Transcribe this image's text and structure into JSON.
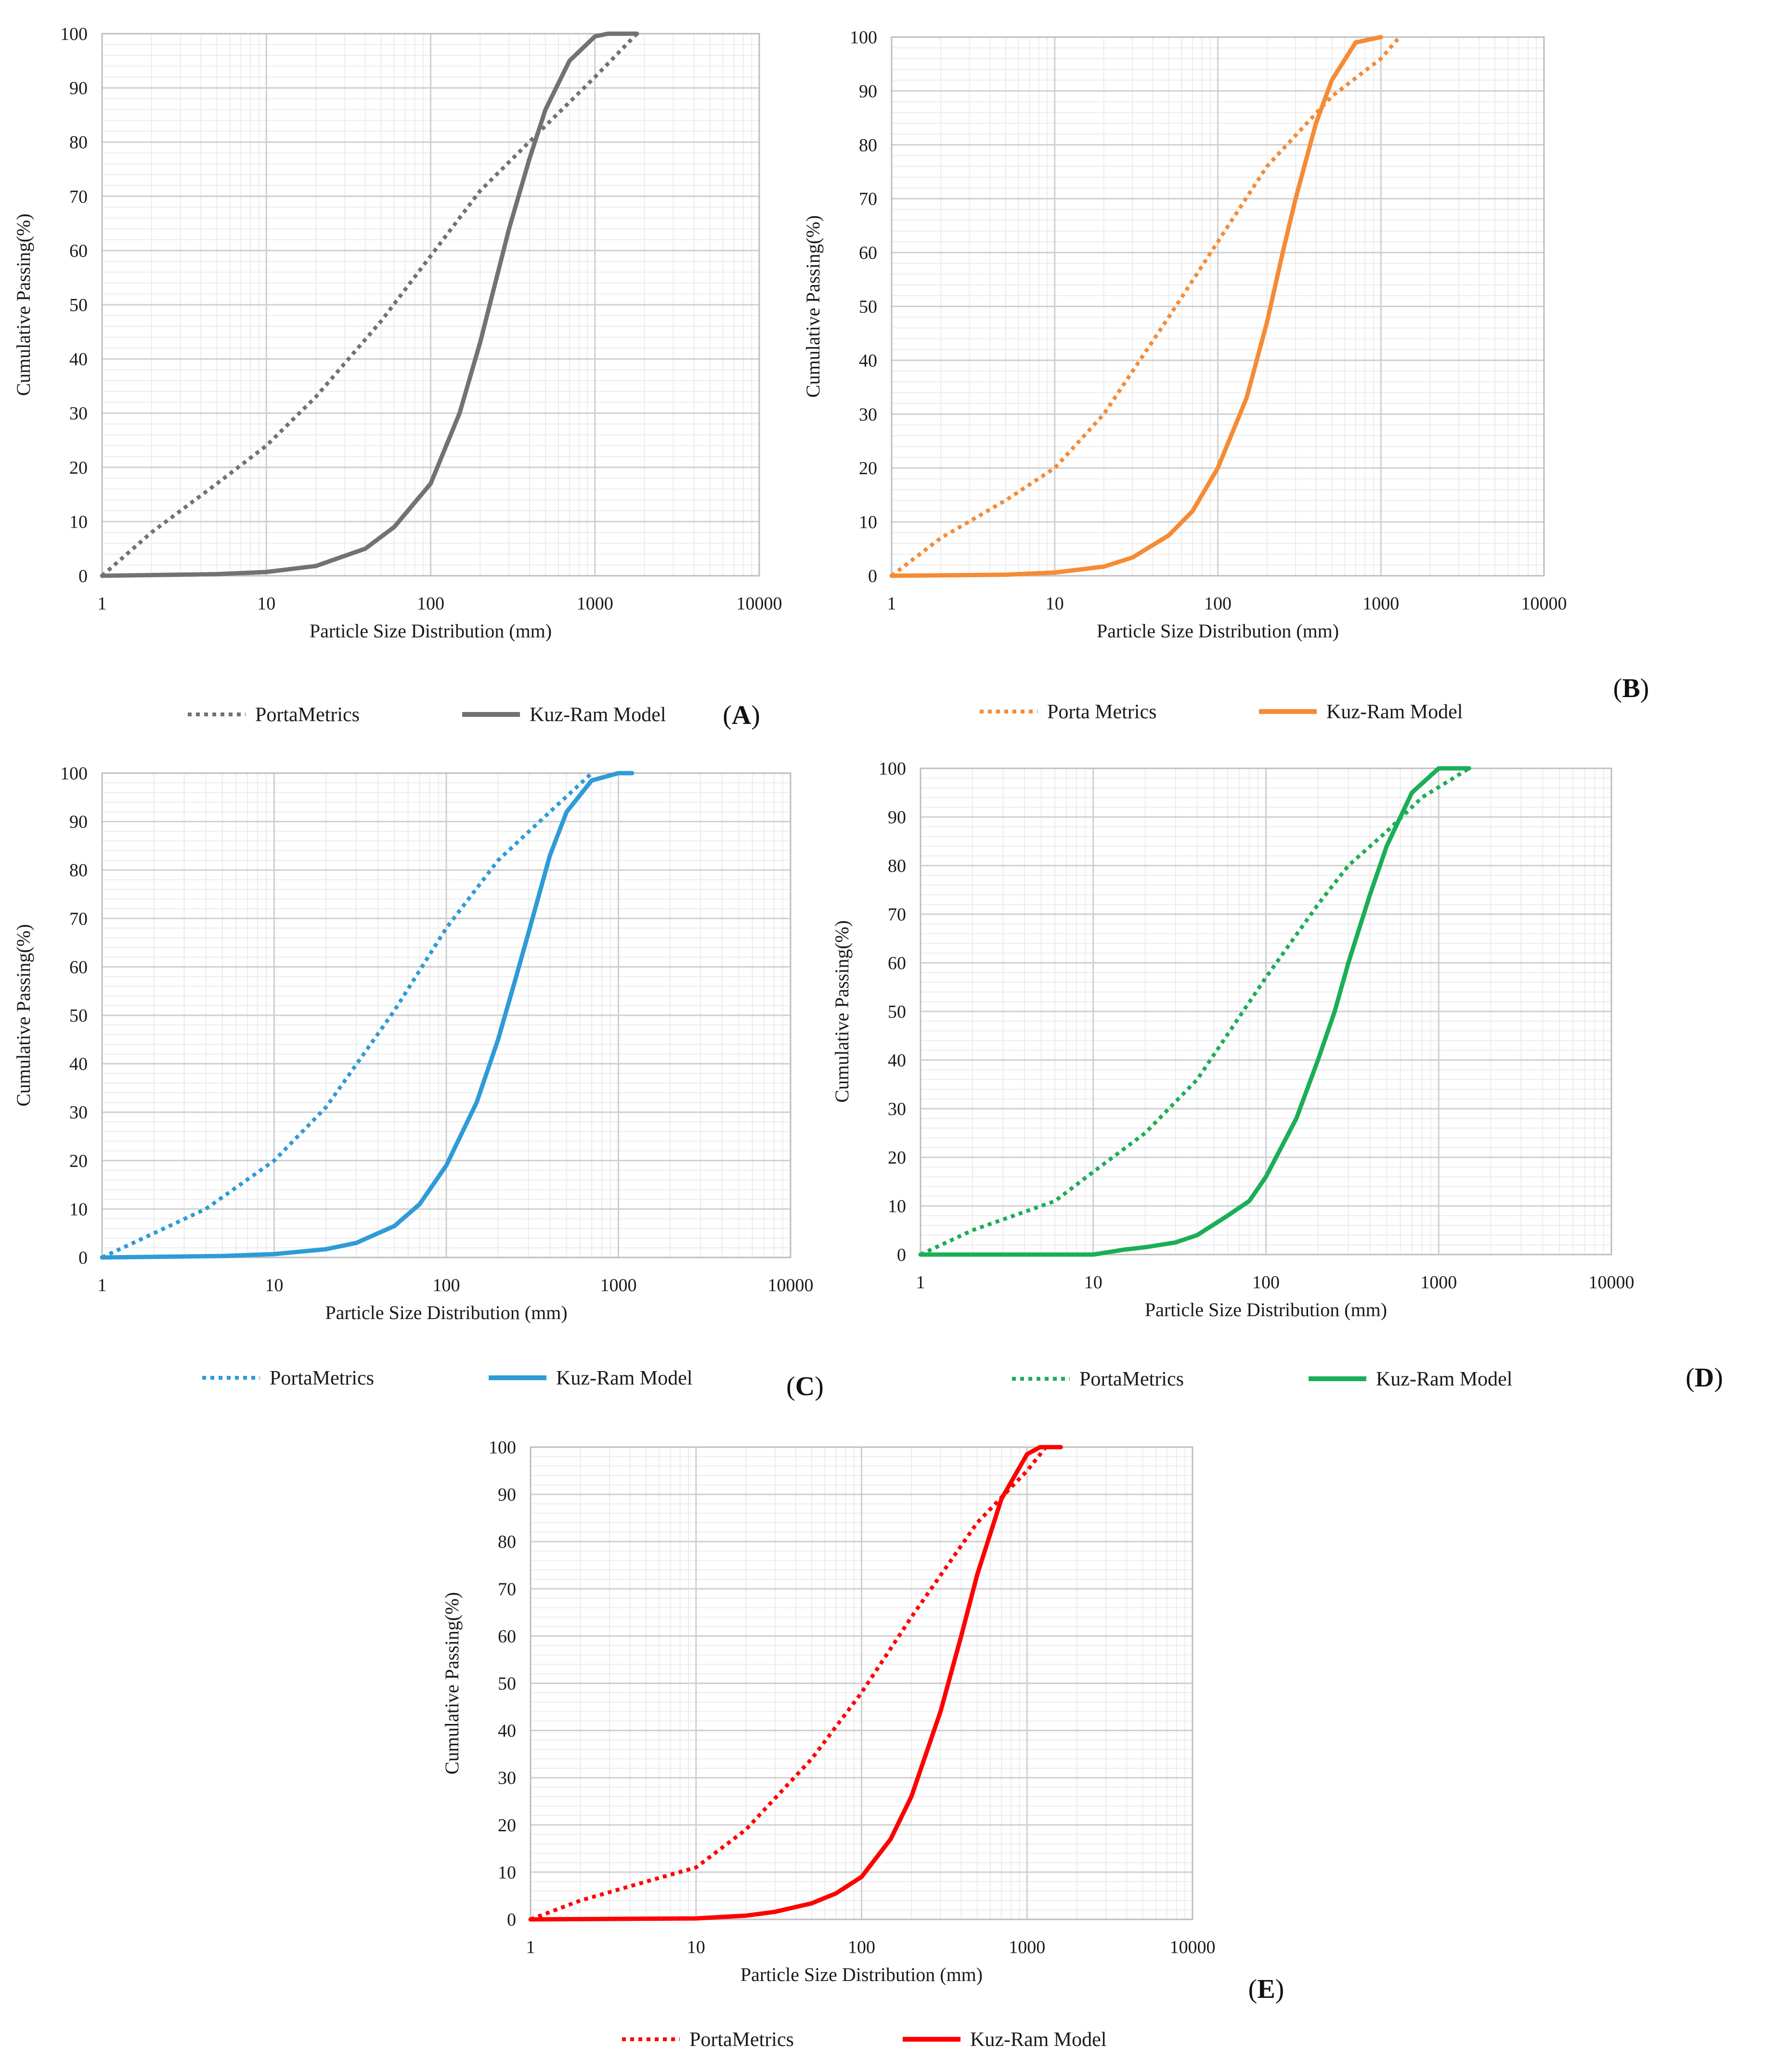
{
  "figure_title": "",
  "chart_data": [
    {
      "panel_label": "(A)",
      "panel_letter_open": "(",
      "panel_letter": "A",
      "panel_letter_close": ")",
      "type": "line",
      "x_scale": "log",
      "xlabel": "Particle Size Distribution (mm)",
      "ylabel": "Cumulative Passing(%)",
      "xlim": [
        1,
        10000
      ],
      "ylim": [
        0,
        100
      ],
      "x_ticks": [
        1,
        10,
        100,
        1000,
        10000
      ],
      "x_tick_labels": [
        "1",
        "10",
        "100",
        "1000",
        "10000"
      ],
      "y_ticks": [
        0,
        10,
        20,
        30,
        40,
        50,
        60,
        70,
        80,
        90,
        100
      ],
      "y_tick_labels": [
        "0",
        "10",
        "20",
        "30",
        "40",
        "50",
        "60",
        "70",
        "80",
        "90",
        "100"
      ],
      "grid": true,
      "legend_position": "bottom",
      "color": "#757171",
      "series": [
        {
          "name": "PortaMetrics",
          "style": "dotted",
          "x": [
            1,
            2,
            5,
            10,
            20,
            50,
            100,
            200,
            500,
            1000,
            1800
          ],
          "y": [
            0,
            8,
            17,
            24,
            33,
            47,
            59,
            71,
            83,
            92,
            100
          ]
        },
        {
          "name": "Kuz-Ram Model",
          "style": "solid",
          "x": [
            1,
            5,
            10,
            20,
            40,
            60,
            100,
            150,
            200,
            300,
            400,
            500,
            700,
            1000,
            1200,
            1800
          ],
          "y": [
            0,
            0.3,
            0.7,
            1.8,
            5,
            9,
            17,
            30,
            43,
            64,
            77,
            86,
            95,
            99.5,
            100,
            100
          ]
        }
      ]
    },
    {
      "panel_label": "(B)",
      "panel_letter_open": "(",
      "panel_letter": "B",
      "panel_letter_close": ")",
      "type": "line",
      "x_scale": "log",
      "xlabel": "Particle Size Distribution (mm)",
      "ylabel": "Cumulative Passing(%)",
      "xlim": [
        1,
        10000
      ],
      "ylim": [
        0,
        100
      ],
      "x_ticks": [
        1,
        10,
        100,
        1000,
        10000
      ],
      "x_tick_labels": [
        "1",
        "10",
        "100",
        "1000",
        "10000"
      ],
      "y_ticks": [
        0,
        10,
        20,
        30,
        40,
        50,
        60,
        70,
        80,
        90,
        100
      ],
      "y_tick_labels": [
        "0",
        "10",
        "20",
        "30",
        "40",
        "50",
        "60",
        "70",
        "80",
        "90",
        "100"
      ],
      "grid": true,
      "legend_position": "bottom",
      "color": "#F58B35",
      "series": [
        {
          "name": "Porta Metrics",
          "style": "dotted",
          "x": [
            1,
            2,
            5,
            10,
            20,
            50,
            100,
            200,
            500,
            1000,
            1300
          ],
          "y": [
            0,
            7,
            14,
            20,
            30,
            48,
            62,
            76,
            89,
            96,
            100
          ]
        },
        {
          "name": "Kuz-Ram Model",
          "style": "solid",
          "x": [
            1,
            5,
            10,
            20,
            30,
            50,
            70,
            100,
            150,
            200,
            250,
            300,
            400,
            500,
            700,
            1000
          ],
          "y": [
            0,
            0.2,
            0.6,
            1.7,
            3.4,
            7.5,
            12,
            20,
            33,
            47,
            60,
            70,
            84,
            92,
            99,
            100
          ]
        }
      ]
    },
    {
      "panel_label": "(C)",
      "panel_letter_open": "(",
      "panel_letter": "C",
      "panel_letter_close": ")",
      "type": "line",
      "x_scale": "log",
      "xlabel": "Particle Size Distribution (mm)",
      "ylabel": "Cumulative Passing(%)",
      "xlim": [
        1,
        10000
      ],
      "ylim": [
        0,
        100
      ],
      "x_ticks": [
        1,
        10,
        100,
        1000,
        10000
      ],
      "x_tick_labels": [
        "1",
        "10",
        "100",
        "1000",
        "10000"
      ],
      "y_ticks": [
        0,
        10,
        20,
        30,
        40,
        50,
        60,
        70,
        80,
        90,
        100
      ],
      "y_tick_labels": [
        "0",
        "10",
        "20",
        "30",
        "40",
        "50",
        "60",
        "70",
        "80",
        "90",
        "100"
      ],
      "grid": true,
      "legend_position": "bottom",
      "color": "#2E9BD8",
      "series": [
        {
          "name": "PortaMetrics",
          "style": "dotted",
          "x": [
            1,
            2,
            4,
            10,
            20,
            50,
            100,
            200,
            400,
            700
          ],
          "y": [
            0,
            5,
            10,
            20,
            31,
            51,
            68,
            82,
            92,
            100
          ]
        },
        {
          "name": "Kuz-Ram Model",
          "style": "solid",
          "x": [
            1,
            5,
            10,
            20,
            30,
            50,
            70,
            100,
            150,
            200,
            250,
            300,
            400,
            500,
            700,
            1000,
            1200
          ],
          "y": [
            0,
            0.3,
            0.7,
            1.7,
            3,
            6.5,
            11,
            19,
            32,
            45,
            57,
            67,
            83,
            92,
            98.5,
            100,
            100
          ]
        }
      ]
    },
    {
      "panel_label": "(D)",
      "panel_letter_open": "(",
      "panel_letter": "D",
      "panel_letter_close": ")",
      "type": "line",
      "x_scale": "log",
      "xlabel": "Particle Size Distribution (mm)",
      "ylabel": "Cumulative Passing(%)",
      "xlim": [
        1,
        10000
      ],
      "ylim": [
        0,
        100
      ],
      "x_ticks": [
        1,
        10,
        100,
        1000,
        10000
      ],
      "x_tick_labels": [
        "1",
        "10",
        "100",
        "1000",
        "10000"
      ],
      "y_ticks": [
        0,
        10,
        20,
        30,
        40,
        50,
        60,
        70,
        80,
        90,
        100
      ],
      "y_tick_labels": [
        "0",
        "10",
        "20",
        "30",
        "40",
        "50",
        "60",
        "70",
        "80",
        "90",
        "100"
      ],
      "grid": true,
      "legend_position": "bottom",
      "color": "#1BAE57",
      "series": [
        {
          "name": "PortaMetrics",
          "style": "dotted",
          "x": [
            1,
            2,
            6,
            10,
            20,
            40,
            100,
            200,
            300,
            500,
            800,
            1500
          ],
          "y": [
            0,
            5,
            11,
            17,
            25,
            36,
            57,
            72,
            80,
            87,
            94,
            100
          ]
        },
        {
          "name": "Kuz-Ram Model",
          "style": "solid",
          "x": [
            1,
            10,
            15,
            20,
            30,
            40,
            60,
            80,
            100,
            150,
            200,
            250,
            300,
            400,
            500,
            700,
            1000,
            1500
          ],
          "y": [
            0,
            0,
            1,
            1.5,
            2.5,
            4,
            8,
            11,
            16,
            28,
            40,
            50,
            60,
            74,
            84,
            95,
            100,
            100
          ]
        }
      ]
    },
    {
      "panel_label": "(E)",
      "panel_letter_open": "(",
      "panel_letter": "E",
      "panel_letter_close": ")",
      "type": "line",
      "x_scale": "log",
      "xlabel": "Particle Size Distribution (mm)",
      "ylabel": "Cumulative Passing(%)",
      "xlim": [
        1,
        10000
      ],
      "ylim": [
        0,
        100
      ],
      "x_ticks": [
        1,
        10,
        100,
        1000,
        10000
      ],
      "x_tick_labels": [
        "1",
        "10",
        "100",
        "1000",
        "10000"
      ],
      "y_ticks": [
        0,
        10,
        20,
        30,
        40,
        50,
        60,
        70,
        80,
        90,
        100
      ],
      "y_tick_labels": [
        "0",
        "10",
        "20",
        "30",
        "40",
        "50",
        "60",
        "70",
        "80",
        "90",
        "100"
      ],
      "grid": true,
      "legend_position": "bottom",
      "color": "#FF0000",
      "series": [
        {
          "name": "PortaMetrics",
          "style": "dotted",
          "x": [
            1,
            2,
            5,
            10,
            20,
            50,
            100,
            200,
            500,
            1000,
            1300
          ],
          "y": [
            0,
            4,
            8,
            11,
            19,
            34,
            48,
            64,
            84,
            95,
            100
          ]
        },
        {
          "name": "Kuz-Ram Model",
          "style": "solid",
          "x": [
            1,
            10,
            20,
            30,
            50,
            70,
            100,
            150,
            200,
            300,
            400,
            500,
            700,
            1000,
            1200,
            1600
          ],
          "y": [
            0,
            0.2,
            0.8,
            1.6,
            3.4,
            5.5,
            9,
            17,
            26,
            44,
            60,
            73,
            89,
            98.5,
            100,
            100
          ]
        }
      ]
    }
  ]
}
